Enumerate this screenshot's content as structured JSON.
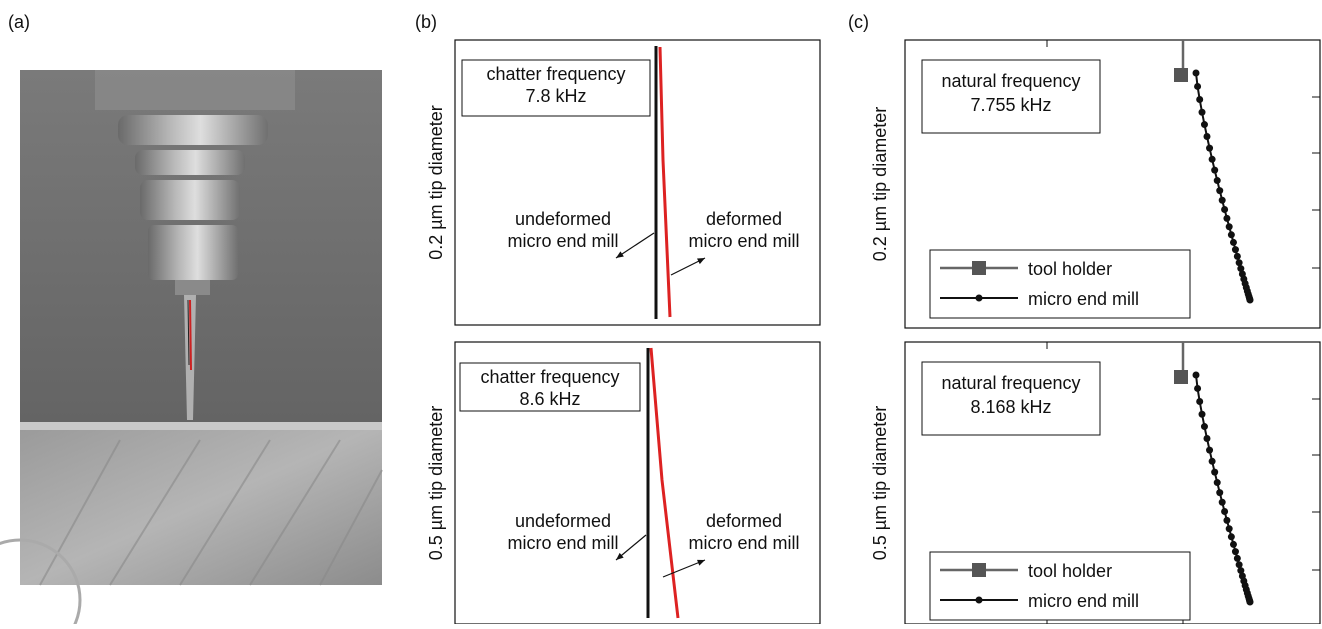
{
  "panel_labels": [
    "(a)",
    "(b)",
    "(c)"
  ],
  "panel_b": [
    {
      "y_label": "0.2 µm tip diameter",
      "box": [
        "chatter frequency",
        "7.8 kHz"
      ],
      "undeformed": [
        "undeformed",
        "micro end mill"
      ],
      "deformed": [
        "deformed",
        "micro end mill"
      ]
    },
    {
      "y_label": "0.5 µm tip diameter",
      "box": [
        "chatter frequency",
        "8.6 kHz"
      ],
      "undeformed": [
        "undeformed",
        "micro end mill"
      ],
      "deformed": [
        "deformed",
        "micro end mill"
      ]
    }
  ],
  "panel_c": [
    {
      "y_label": "0.2 µm tip diameter",
      "box": [
        "natural frequency",
        "7.755 kHz"
      ],
      "legend": [
        "tool holder",
        "micro end mill"
      ]
    },
    {
      "y_label": "0.5 µm tip diameter",
      "box": [
        "natural frequency",
        "8.168 kHz"
      ],
      "legend": [
        "tool holder",
        "micro end mill"
      ]
    }
  ]
}
